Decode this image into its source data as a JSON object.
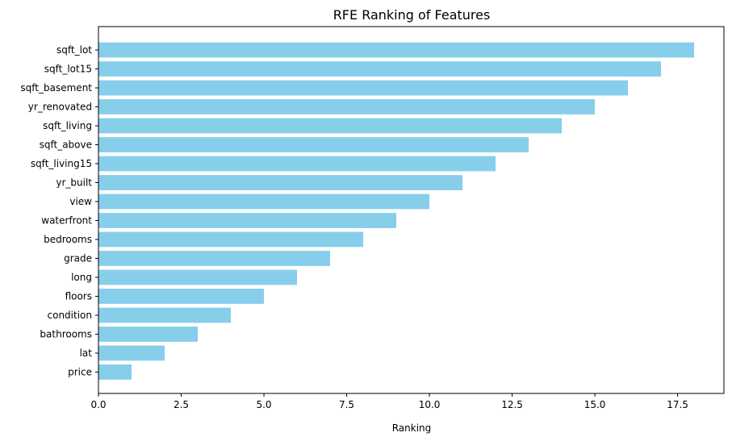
{
  "chart_data": {
    "type": "bar",
    "orientation": "horizontal",
    "title": "RFE Ranking of Features",
    "xlabel": "Ranking",
    "ylabel": "",
    "categories": [
      "sqft_lot",
      "sqft_lot15",
      "sqft_basement",
      "yr_renovated",
      "sqft_living",
      "sqft_above",
      "sqft_living15",
      "yr_built",
      "view",
      "waterfront",
      "bedrooms",
      "grade",
      "long",
      "floors",
      "condition",
      "bathrooms",
      "lat",
      "price"
    ],
    "values": [
      18,
      17,
      16,
      15,
      14,
      13,
      12,
      11,
      10,
      9,
      8,
      7,
      6,
      5,
      4,
      3,
      2,
      1
    ],
    "xlim": [
      0,
      18.9
    ],
    "xticks": [
      0.0,
      2.5,
      5.0,
      7.5,
      10.0,
      12.5,
      15.0,
      17.5
    ],
    "xtick_labels": [
      "0.0",
      "2.5",
      "5.0",
      "7.5",
      "10.0",
      "12.5",
      "15.0",
      "17.5"
    ],
    "bar_color": "#87ceeb",
    "grid": false,
    "legend": "none"
  }
}
